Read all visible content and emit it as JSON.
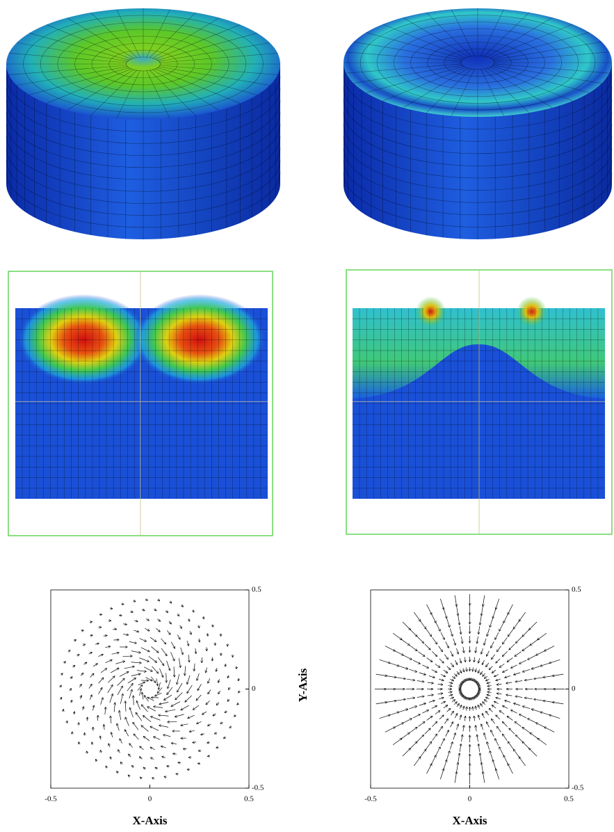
{
  "plots": [
    {
      "xlim": [
        -0.5,
        0.5
      ],
      "ylim": [
        -0.5,
        0.5
      ],
      "xticks": [
        -0.5,
        0,
        0.5
      ],
      "yticks": [
        -0.5,
        0,
        0.5
      ],
      "xlabel": "X-Axis"
    },
    {
      "xlim": [
        -0.5,
        0.5
      ],
      "ylim": [
        -0.5,
        0.5
      ],
      "xticks": [
        -0.5,
        0,
        0.5
      ],
      "yticks": [
        -0.5,
        0,
        0.5
      ],
      "xlabel": "X-Axis"
    }
  ],
  "ylabel": "Y-Axis"
}
